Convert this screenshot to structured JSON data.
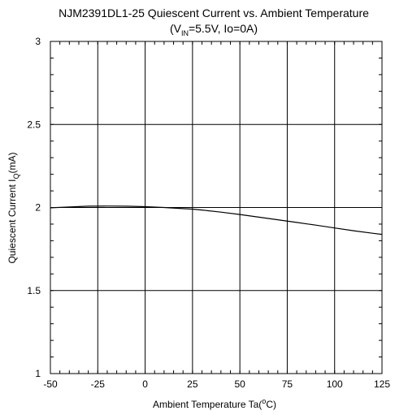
{
  "chart_data": {
    "type": "line",
    "title": "NJM2391DL1-25 Quiescent Current vs. Ambient Temperature",
    "subtitle": {
      "open": "(V",
      "sub": "IN",
      "rest": "=5.5V, Io=0A)"
    },
    "xlabel": {
      "main": "Ambient Temperature Ta(",
      "sup": "o",
      "end": "C)"
    },
    "ylabel": {
      "main": "Quiescent Current  I",
      "sub": "Q",
      "end": "(mA)"
    },
    "xlim": [
      -50,
      125
    ],
    "ylim": [
      1,
      3
    ],
    "x_ticks": [
      -50,
      -25,
      0,
      25,
      50,
      75,
      100,
      125
    ],
    "x_tick_labels": [
      "-50",
      "-25",
      "0",
      "25",
      "50",
      "75",
      "100",
      "125"
    ],
    "y_ticks": [
      1,
      1.5,
      2,
      2.5,
      3
    ],
    "y_tick_labels": [
      "1",
      "1.5",
      "2",
      "2.5",
      "3"
    ],
    "grid": true,
    "series": [
      {
        "color": "#000000",
        "x": [
          -50,
          -40,
          -30,
          -20,
          -10,
          0,
          10,
          20,
          25,
          30,
          40,
          50,
          60,
          70,
          80,
          90,
          100,
          110,
          120,
          125
        ],
        "y": [
          1.998,
          2.003,
          2.008,
          2.009,
          2.008,
          2.005,
          2.0,
          1.993,
          1.99,
          1.985,
          1.972,
          1.958,
          1.942,
          1.926,
          1.91,
          1.894,
          1.877,
          1.86,
          1.845,
          1.838
        ]
      }
    ]
  }
}
